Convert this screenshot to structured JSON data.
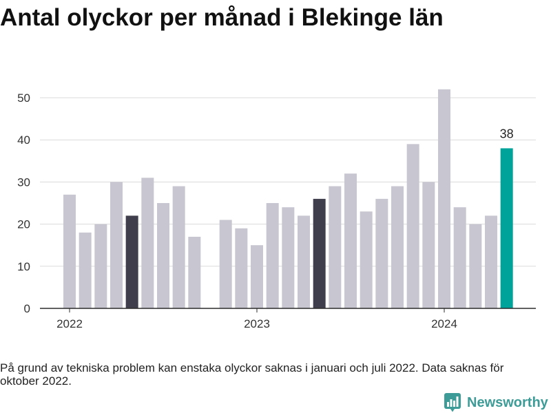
{
  "chart_data": {
    "type": "bar",
    "title": "Antal olyckor per månad i Blekinge län",
    "x": [
      "2022-01",
      "2022-02",
      "2022-03",
      "2022-04",
      "2022-05",
      "2022-06",
      "2022-07",
      "2022-08",
      "2022-09",
      "2022-10",
      "2022-11",
      "2022-12",
      "2023-01",
      "2023-02",
      "2023-03",
      "2023-04",
      "2023-05",
      "2023-06",
      "2023-07",
      "2023-08",
      "2023-09",
      "2023-10",
      "2023-11",
      "2023-12",
      "2024-01",
      "2024-02",
      "2024-03",
      "2024-04",
      "2024-05"
    ],
    "values": [
      27,
      18,
      20,
      30,
      22,
      31,
      25,
      29,
      17,
      null,
      21,
      19,
      15,
      25,
      24,
      22,
      26,
      29,
      32,
      23,
      26,
      29,
      39,
      30,
      52,
      24,
      20,
      22,
      38
    ],
    "x_ticks": [
      {
        "x": "2022-01",
        "label": "2022"
      },
      {
        "x": "2023-01",
        "label": "2023"
      },
      {
        "x": "2024-01",
        "label": "2024"
      }
    ],
    "y_ticks": [
      0,
      10,
      20,
      30,
      40,
      50
    ],
    "ylim": [
      0,
      52
    ],
    "grid": true,
    "highlight_x": [
      "2022-05",
      "2023-05"
    ],
    "latest_x": "2024-05",
    "data_labels": [
      {
        "x": "2024-05",
        "label": "38"
      }
    ],
    "colors": {
      "bar": "#c8c6d0",
      "highlight": "#3f3e4c",
      "latest": "#00a39a",
      "grid": "#dadada",
      "axis": "#2b2b2b"
    }
  },
  "footnote": "På grund av tekniska problem kan enstaka olyckor saknas i januari och juli 2022. Data saknas för oktober 2022.",
  "logo": {
    "text": "Newsworthy",
    "color": "#3d9c97",
    "icon": "bar-chart-logo-icon"
  }
}
